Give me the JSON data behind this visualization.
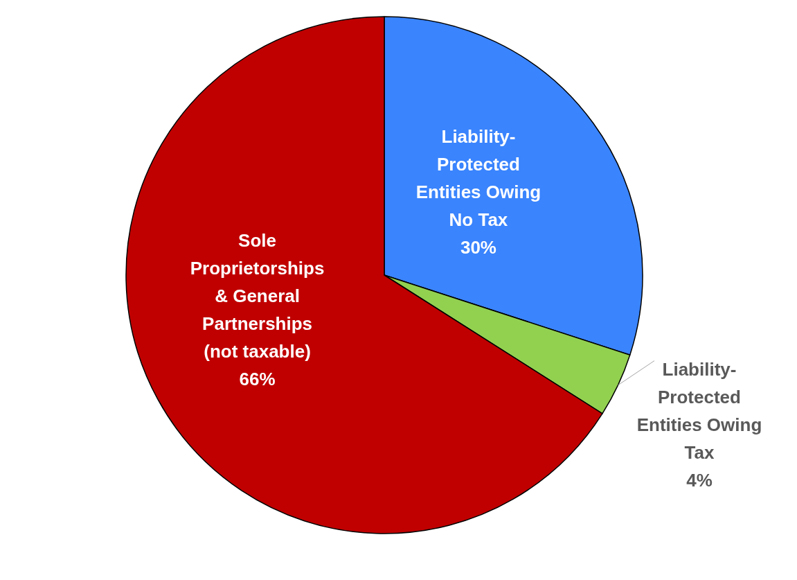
{
  "chart_data": {
    "type": "pie",
    "categories": [
      "Liability-\nProtected\nEntities Owing\nNo Tax",
      "Liability-\nProtected\nEntities Owing\nTax",
      "Sole\nProprietorships\n& General\nPartnerships\n(not taxable)"
    ],
    "values": [
      30,
      4,
      66
    ],
    "colors": [
      "#3a84fd",
      "#92d050",
      "#c00000"
    ],
    "value_labels": [
      "30%",
      "4%",
      "66%"
    ]
  }
}
